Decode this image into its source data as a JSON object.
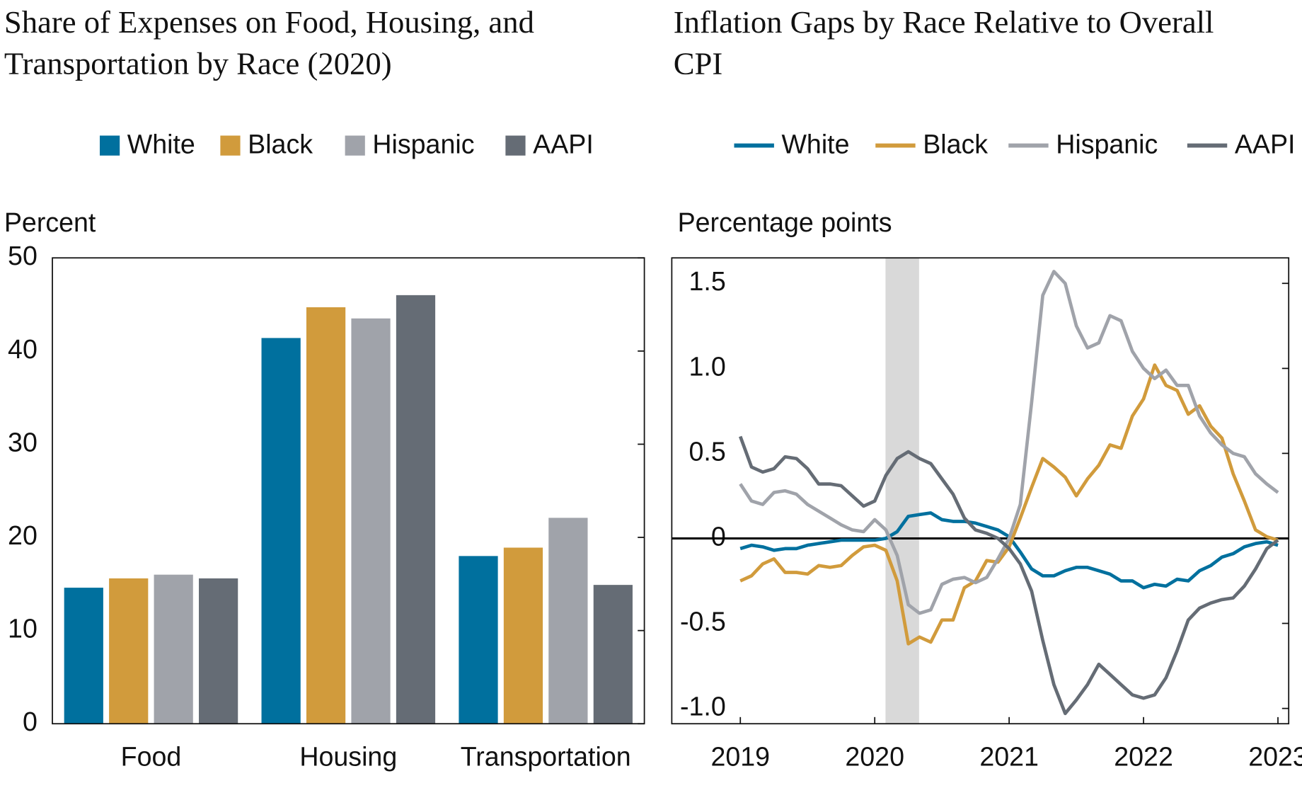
{
  "chart_data": [
    {
      "type": "bar",
      "title": "Share of Expenses on Food, Housing, and Transportation by Race (2020)",
      "y_label": "Percent",
      "categories": [
        "Food",
        "Housing",
        "Transportation"
      ],
      "series": [
        {
          "name": "White",
          "color": "#00709e",
          "values": [
            14.6,
            41.4,
            18.0
          ]
        },
        {
          "name": "Black",
          "color": "#d19b3c",
          "values": [
            15.6,
            44.7,
            18.9
          ]
        },
        {
          "name": "Hispanic",
          "color": "#a0a3aa",
          "values": [
            16.0,
            43.5,
            22.1
          ]
        },
        {
          "name": "AAPI",
          "color": "#656c75",
          "values": [
            15.6,
            46.0,
            14.9
          ]
        }
      ],
      "ylim": [
        0,
        50
      ],
      "yticks": [
        0,
        10,
        20,
        30,
        40,
        50
      ]
    },
    {
      "type": "line",
      "title": "Inflation Gaps by Race Relative to Overall CPI",
      "y_label": "Percentage points",
      "x": [
        2019,
        2019.083,
        2019.167,
        2019.25,
        2019.333,
        2019.417,
        2019.5,
        2019.583,
        2019.667,
        2019.75,
        2019.833,
        2019.917,
        2020,
        2020.083,
        2020.167,
        2020.25,
        2020.333,
        2020.417,
        2020.5,
        2020.583,
        2020.667,
        2020.75,
        2020.833,
        2020.917,
        2021,
        2021.083,
        2021.167,
        2021.25,
        2021.333,
        2021.417,
        2021.5,
        2021.583,
        2021.667,
        2021.75,
        2021.833,
        2021.917,
        2022,
        2022.083,
        2022.167,
        2022.25,
        2022.333,
        2022.417,
        2022.5,
        2022.583,
        2022.667,
        2022.75,
        2022.833,
        2022.917,
        2023
      ],
      "series": [
        {
          "name": "White",
          "color": "#00709e",
          "values": [
            -0.06,
            -0.04,
            -0.05,
            -0.07,
            -0.06,
            -0.06,
            -0.04,
            -0.03,
            -0.02,
            -0.01,
            -0.01,
            -0.01,
            -0.01,
            0.0,
            0.04,
            0.13,
            0.14,
            0.15,
            0.11,
            0.1,
            0.1,
            0.09,
            0.07,
            0.05,
            0.01,
            -0.08,
            -0.18,
            -0.22,
            -0.22,
            -0.19,
            -0.17,
            -0.17,
            -0.19,
            -0.21,
            -0.25,
            -0.25,
            -0.29,
            -0.27,
            -0.28,
            -0.24,
            -0.25,
            -0.19,
            -0.16,
            -0.11,
            -0.09,
            -0.05,
            -0.03,
            -0.02,
            -0.04
          ]
        },
        {
          "name": "Black",
          "color": "#d19b3c",
          "values": [
            -0.25,
            -0.22,
            -0.15,
            -0.12,
            -0.2,
            -0.2,
            -0.21,
            -0.16,
            -0.17,
            -0.16,
            -0.1,
            -0.05,
            -0.04,
            -0.07,
            -0.25,
            -0.62,
            -0.58,
            -0.61,
            -0.48,
            -0.48,
            -0.29,
            -0.25,
            -0.13,
            -0.14,
            -0.05,
            0.12,
            0.3,
            0.47,
            0.42,
            0.36,
            0.25,
            0.35,
            0.43,
            0.55,
            0.53,
            0.72,
            0.82,
            1.02,
            0.9,
            0.87,
            0.73,
            0.78,
            0.66,
            0.59,
            0.38,
            0.22,
            0.05,
            0.01,
            -0.01
          ]
        },
        {
          "name": "Hispanic",
          "color": "#a0a3aa",
          "values": [
            0.32,
            0.22,
            0.2,
            0.27,
            0.28,
            0.26,
            0.2,
            0.16,
            0.12,
            0.08,
            0.05,
            0.04,
            0.11,
            0.05,
            -0.1,
            -0.39,
            -0.44,
            -0.42,
            -0.27,
            -0.24,
            -0.23,
            -0.26,
            -0.23,
            -0.12,
            0.0,
            0.2,
            0.8,
            1.43,
            1.57,
            1.5,
            1.25,
            1.12,
            1.15,
            1.31,
            1.28,
            1.1,
            1.0,
            0.94,
            0.99,
            0.9,
            0.9,
            0.72,
            0.62,
            0.55,
            0.5,
            0.48,
            0.38,
            0.32,
            0.27
          ]
        },
        {
          "name": "AAPI",
          "color": "#656c75",
          "values": [
            0.6,
            0.42,
            0.39,
            0.41,
            0.48,
            0.47,
            0.41,
            0.32,
            0.32,
            0.31,
            0.25,
            0.19,
            0.22,
            0.37,
            0.47,
            0.51,
            0.47,
            0.44,
            0.35,
            0.26,
            0.12,
            0.05,
            0.03,
            0.0,
            -0.06,
            -0.15,
            -0.31,
            -0.6,
            -0.86,
            -1.03,
            -0.95,
            -0.86,
            -0.74,
            -0.8,
            -0.86,
            -0.92,
            -0.94,
            -0.92,
            -0.82,
            -0.66,
            -0.48,
            -0.41,
            -0.38,
            -0.36,
            -0.35,
            -0.28,
            -0.18,
            -0.06,
            -0.01
          ]
        }
      ],
      "shade": [
        2020.08,
        2020.33
      ],
      "xlim": [
        2018.49,
        2023.08
      ],
      "xticks": [
        2019,
        2020,
        2021,
        2022,
        2023
      ],
      "ylim": [
        -1.09,
        1.65
      ],
      "yticks": [
        {
          "value": -1,
          "label": "-1.0"
        },
        -0.5,
        0,
        0.5,
        {
          "value": 1,
          "label": "1.0"
        },
        1.5
      ],
      "zero_line": true
    }
  ]
}
